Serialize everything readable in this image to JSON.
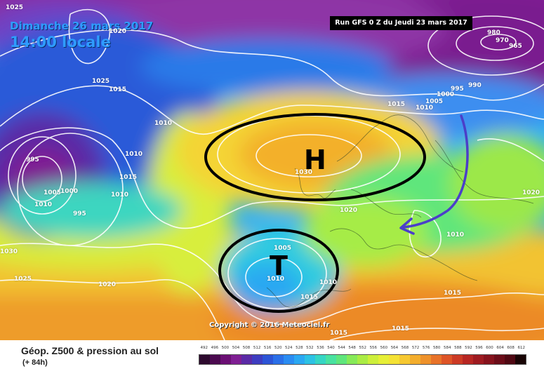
{
  "map": {
    "date_line": "Dimanche 26 mars 2017",
    "time_line": "14:00 locale",
    "run_info": "Run GFS 0 Z du Jeudi 23 mars 2017",
    "copyright": "Copyright © 2016 Meteociel.fr",
    "systems": [
      {
        "letter": "H",
        "meaning": "high pressure"
      },
      {
        "letter": "T",
        "meaning": "low pressure"
      }
    ],
    "isobars": [
      "1025",
      "1020",
      "980",
      "970",
      "965",
      "995",
      "990",
      "1015",
      "1010",
      "1000",
      "1005",
      "1015",
      "1025",
      "1010",
      "995",
      "1010",
      "1005",
      "1000",
      "1010",
      "995",
      "1015",
      "1010",
      "1030",
      "1020",
      "1020",
      "1010",
      "1030",
      "1025",
      "1020",
      "1005",
      "1010",
      "1010",
      "1015",
      "1015",
      "1015",
      "1015"
    ],
    "colors": {
      "contour": "#ffffff",
      "annotation_ellipse": "#000000",
      "arrow": "#4b3fc9",
      "date_text": "#2f9cff",
      "run_box_bg": "#000000"
    }
  },
  "legend": {
    "title": "Géop. Z500 & pression au sol",
    "lead_time": "(+ 84h)",
    "ticks": [
      "492",
      "496",
      "500",
      "504",
      "508",
      "512",
      "516",
      "520",
      "524",
      "528",
      "532",
      "536",
      "540",
      "544",
      "548",
      "552",
      "556",
      "560",
      "564",
      "568",
      "572",
      "576",
      "580",
      "584",
      "588",
      "592",
      "596",
      "600",
      "604",
      "608",
      "612"
    ],
    "colors": [
      "#2d0a2e",
      "#4b0a4f",
      "#6b0f74",
      "#7f1e93",
      "#5a2aa6",
      "#3d3cc0",
      "#2c54d6",
      "#2a6fe8",
      "#2a8cf2",
      "#2aa8f2",
      "#2cc2e4",
      "#35d6c4",
      "#48e2a0",
      "#5fe67c",
      "#86ea58",
      "#aaec44",
      "#cdef3a",
      "#e6ef36",
      "#f4e234",
      "#f6c830",
      "#f3ad2c",
      "#ee912a",
      "#e87228",
      "#de5426",
      "#cc3a24",
      "#b72622",
      "#9e1a20",
      "#86121c",
      "#6b0c18",
      "#4f0812",
      "#180404"
    ]
  }
}
